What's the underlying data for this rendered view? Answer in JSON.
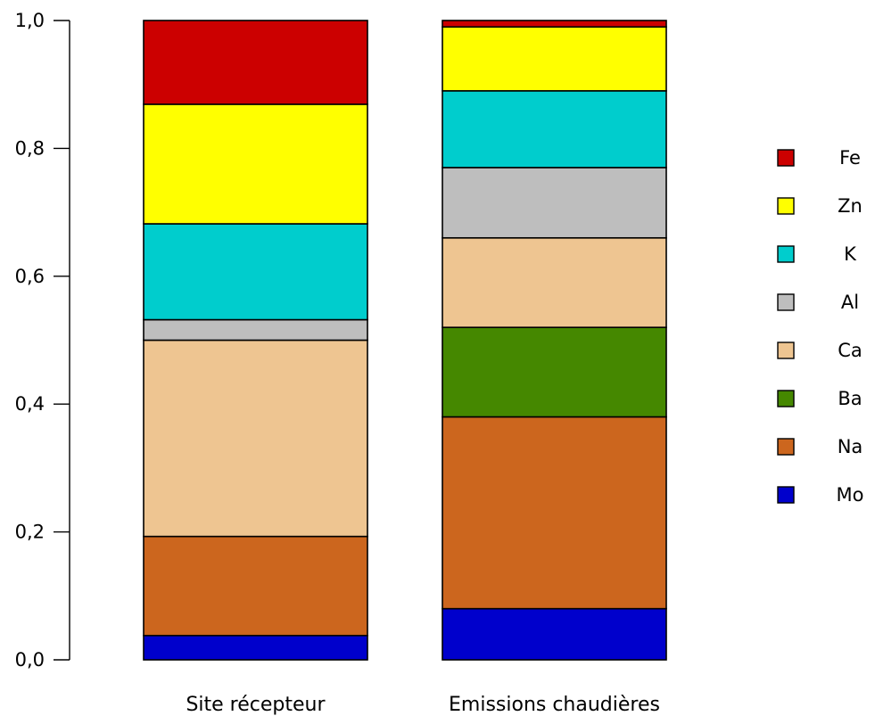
{
  "chart_data": {
    "type": "bar",
    "stacked": true,
    "categories": [
      "Site récepteur",
      "Emissions chaudières"
    ],
    "ylim": [
      0,
      1
    ],
    "y_ticks": [
      "0,0",
      "0,2",
      "0,4",
      "0,6",
      "0,8",
      "1,0"
    ],
    "y_tick_values": [
      0,
      0.2,
      0.4,
      0.6,
      0.8,
      1.0
    ],
    "grid": false,
    "legend_position": "right",
    "series": [
      {
        "name": "Mo",
        "color": "#0000CC",
        "values": [
          0.038,
          0.08
        ]
      },
      {
        "name": "Na",
        "color": "#CC661E",
        "values": [
          0.155,
          0.3
        ]
      },
      {
        "name": "Ba",
        "color": "#458800",
        "values": [
          0.0,
          0.14
        ]
      },
      {
        "name": "Ca",
        "color": "#EEC591",
        "values": [
          0.307,
          0.14
        ]
      },
      {
        "name": "Al",
        "color": "#BEBEBE",
        "values": [
          0.032,
          0.11
        ]
      },
      {
        "name": "K",
        "color": "#00CDCD",
        "values": [
          0.15,
          0.12
        ]
      },
      {
        "name": "Zn",
        "color": "#FFFF00",
        "values": [
          0.187,
          0.1
        ]
      },
      {
        "name": "Fe",
        "color": "#CC0000",
        "values": [
          0.131,
          0.01
        ]
      }
    ]
  }
}
